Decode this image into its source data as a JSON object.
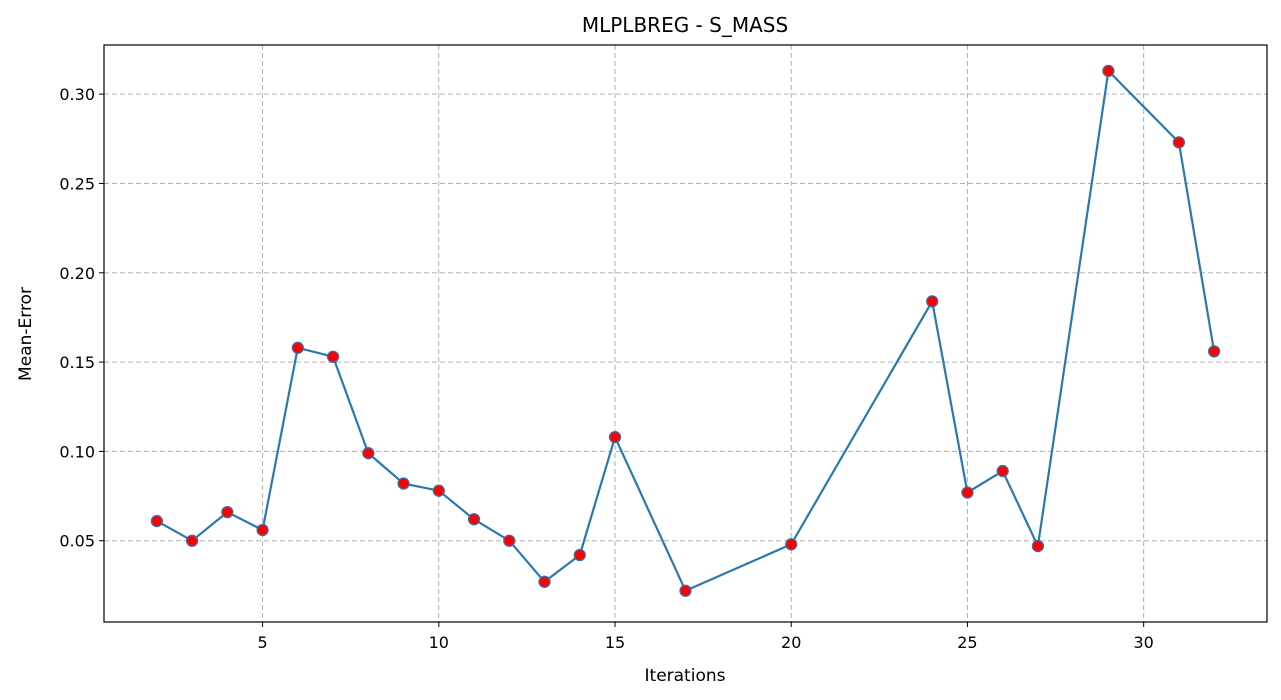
{
  "chart_data": {
    "type": "line",
    "title": "MLPLBREG - S_MASS",
    "xlabel": "Iterations",
    "ylabel": "Mean-Error",
    "xlim": [
      0.5,
      33.5
    ],
    "ylim": [
      0.0045,
      0.3275
    ],
    "xticks": [
      5,
      10,
      15,
      20,
      25,
      30
    ],
    "xtick_labels": [
      "5",
      "10",
      "15",
      "20",
      "25",
      "30"
    ],
    "yticks": [
      0.05,
      0.1,
      0.15,
      0.2,
      0.25,
      0.3
    ],
    "ytick_labels": [
      "0.05",
      "0.10",
      "0.15",
      "0.20",
      "0.25",
      "0.30"
    ],
    "grid": true,
    "line_color": "#2a78b0",
    "marker_face_color": "#ff0000",
    "marker_edge_color": "#3b6ea5",
    "x": [
      2,
      3,
      4,
      5,
      6,
      7,
      8,
      9,
      10,
      11,
      12,
      13,
      14,
      15,
      17,
      20,
      24,
      25,
      26,
      27,
      29,
      31,
      32
    ],
    "y": [
      0.061,
      0.05,
      0.066,
      0.056,
      0.158,
      0.153,
      0.099,
      0.082,
      0.078,
      0.062,
      0.05,
      0.027,
      0.042,
      0.108,
      0.022,
      0.048,
      0.184,
      0.077,
      0.089,
      0.047,
      0.313,
      0.273,
      0.156
    ]
  }
}
